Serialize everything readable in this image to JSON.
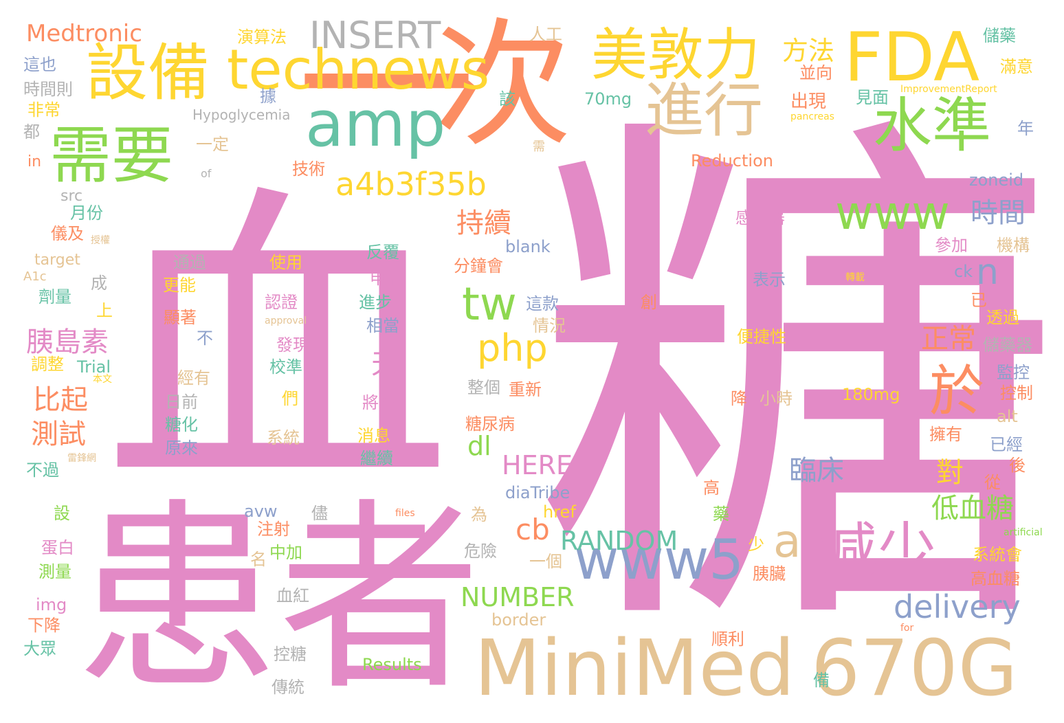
{
  "colors": {
    "background": "#ffffff",
    "pink": "#e38ac6",
    "orange": "#fc8d62",
    "yellow": "#fed631",
    "green": "#8ed850",
    "teal": "#66c2a5",
    "blue": "#8da0cb",
    "tan": "#e5c494",
    "gray": "#b3b3b3"
  },
  "words": [
    {
      "text": "血",
      "color": "pink"
    },
    {
      "text": "糖",
      "color": "pink"
    },
    {
      "text": "患者",
      "color": "pink"
    },
    {
      "text": "次",
      "color": "orange"
    },
    {
      "text": "一",
      "color": "orange"
    },
    {
      "text": "MiniMed",
      "color": "tan"
    },
    {
      "text": "670G",
      "color": "tan"
    },
    {
      "text": "FDA",
      "color": "yellow"
    },
    {
      "text": "需要",
      "color": "green"
    },
    {
      "text": "設備",
      "color": "yellow"
    },
    {
      "text": "amp",
      "color": "teal"
    },
    {
      "text": "美敦力",
      "color": "yellow"
    },
    {
      "text": "technews",
      "color": "yellow"
    },
    {
      "text": "水準",
      "color": "green"
    },
    {
      "text": "進行",
      "color": "tan"
    },
    {
      "text": "INSERT",
      "color": "gray"
    },
    {
      "text": "Medtronic",
      "color": "orange"
    },
    {
      "text": "a4b3f35b",
      "color": "yellow"
    },
    {
      "text": "www5",
      "color": "blue"
    },
    {
      "text": "減少",
      "color": "pink"
    },
    {
      "text": "於",
      "color": "orange"
    },
    {
      "text": "www",
      "color": "green"
    },
    {
      "text": "tw",
      "color": "green"
    },
    {
      "text": "php",
      "color": "yellow"
    },
    {
      "text": "a",
      "color": "tan"
    },
    {
      "text": "delivery",
      "color": "blue"
    },
    {
      "text": "cb",
      "color": "orange"
    },
    {
      "text": "RANDOM",
      "color": "teal"
    },
    {
      "text": "NUMBER",
      "color": "green"
    },
    {
      "text": "n",
      "color": "blue"
    },
    {
      "text": "方法",
      "color": "yellow"
    },
    {
      "text": "持續",
      "color": "orange"
    },
    {
      "text": "時間",
      "color": "blue"
    },
    {
      "text": "正常",
      "color": "orange"
    },
    {
      "text": "胰島素",
      "color": "pink"
    },
    {
      "text": "比起",
      "color": "orange"
    },
    {
      "text": "測試",
      "color": "orange"
    },
    {
      "text": "天",
      "color": "pink"
    },
    {
      "text": "dl",
      "color": "green"
    },
    {
      "text": "HERE",
      "color": "pink"
    },
    {
      "text": "臨床",
      "color": "blue"
    },
    {
      "text": "對",
      "color": "yellow"
    },
    {
      "text": "低血糖",
      "color": "green"
    },
    {
      "text": "通過",
      "color": "gray"
    },
    {
      "text": "使用",
      "color": "yellow"
    },
    {
      "text": "反覆",
      "color": "teal"
    },
    {
      "text": "申請",
      "color": "pink"
    },
    {
      "text": "認證",
      "color": "pink"
    },
    {
      "text": "進步",
      "color": "teal"
    },
    {
      "text": "相當",
      "color": "blue"
    },
    {
      "text": "發現",
      "color": "pink"
    },
    {
      "text": "校準",
      "color": "teal"
    },
    {
      "text": "將在",
      "color": "pink"
    },
    {
      "text": "們",
      "color": "yellow"
    },
    {
      "text": "系統",
      "color": "tan"
    },
    {
      "text": "消息",
      "color": "yellow"
    },
    {
      "text": "繼續",
      "color": "teal"
    },
    {
      "text": "更能",
      "color": "yellow"
    },
    {
      "text": "顯著",
      "color": "orange"
    },
    {
      "text": "不",
      "color": "blue"
    },
    {
      "text": "經有",
      "color": "tan"
    },
    {
      "text": "日前",
      "color": "gray"
    },
    {
      "text": "糖化",
      "color": "teal"
    },
    {
      "text": "原來",
      "color": "blue"
    },
    {
      "text": "approval",
      "color": "tan"
    },
    {
      "text": "演算法",
      "color": "yellow"
    },
    {
      "text": "人工",
      "color": "tan"
    },
    {
      "text": "70mg",
      "color": "teal"
    },
    {
      "text": "Hypoglycemia",
      "color": "gray"
    },
    {
      "text": "該",
      "color": "teal"
    },
    {
      "text": "據",
      "color": "blue"
    },
    {
      "text": "出現",
      "color": "orange"
    },
    {
      "text": "並向",
      "color": "orange"
    },
    {
      "text": "見面",
      "color": "teal"
    },
    {
      "text": "儲藥",
      "color": "teal"
    },
    {
      "text": "滿意",
      "color": "yellow"
    },
    {
      "text": "ImprovementReport",
      "color": "yellow"
    },
    {
      "text": "pancreas",
      "color": "yellow"
    },
    {
      "text": "年",
      "color": "blue"
    },
    {
      "text": "Reduction",
      "color": "orange"
    },
    {
      "text": "一定",
      "color": "tan"
    },
    {
      "text": "技術",
      "color": "orange"
    },
    {
      "text": "of",
      "color": "gray"
    },
    {
      "text": "需",
      "color": "tan"
    },
    {
      "text": "zoneid",
      "color": "blue"
    },
    {
      "text": "感測器",
      "color": "pink"
    },
    {
      "text": "機構",
      "color": "tan"
    },
    {
      "text": "參加",
      "color": "pink"
    },
    {
      "text": "blank",
      "color": "blue"
    },
    {
      "text": "分鐘會",
      "color": "orange"
    },
    {
      "text": "表示",
      "color": "blue"
    },
    {
      "text": "轉載",
      "color": "yellow"
    },
    {
      "text": "ck",
      "color": "blue"
    },
    {
      "text": "已",
      "color": "orange"
    },
    {
      "text": "透過",
      "color": "yellow"
    },
    {
      "text": "這款",
      "color": "blue"
    },
    {
      "text": "情況",
      "color": "tan"
    },
    {
      "text": "創",
      "color": "orange"
    },
    {
      "text": "便捷性",
      "color": "yellow"
    },
    {
      "text": "儲藥器",
      "color": "gray"
    },
    {
      "text": "監控",
      "color": "blue"
    },
    {
      "text": "控制",
      "color": "orange"
    },
    {
      "text": "整個",
      "color": "gray"
    },
    {
      "text": "重新",
      "color": "orange"
    },
    {
      "text": "降",
      "color": "orange"
    },
    {
      "text": "小時",
      "color": "tan"
    },
    {
      "text": "180mg",
      "color": "yellow"
    },
    {
      "text": "alt",
      "color": "tan"
    },
    {
      "text": "糖尿病",
      "color": "orange"
    },
    {
      "text": "擁有",
      "color": "orange"
    },
    {
      "text": "已經",
      "color": "blue"
    },
    {
      "text": "後",
      "color": "orange"
    },
    {
      "text": "從",
      "color": "orange"
    },
    {
      "text": "高",
      "color": "orange"
    },
    {
      "text": "diaTribe",
      "color": "blue"
    },
    {
      "text": "href",
      "color": "yellow"
    },
    {
      "text": "藥",
      "color": "green"
    },
    {
      "text": "artificial",
      "color": "green"
    },
    {
      "text": "系統會",
      "color": "yellow"
    },
    {
      "text": "高血糖",
      "color": "orange"
    },
    {
      "text": "少",
      "color": "yellow"
    },
    {
      "text": "胰臟",
      "color": "orange"
    },
    {
      "text": "一個",
      "color": "tan"
    },
    {
      "text": "危險",
      "color": "gray"
    },
    {
      "text": "為",
      "color": "tan"
    },
    {
      "text": "files",
      "color": "orange"
    },
    {
      "text": "儘",
      "color": "gray"
    },
    {
      "text": "avw",
      "color": "blue"
    },
    {
      "text": "注射",
      "color": "orange"
    },
    {
      "text": "中加",
      "color": "green"
    },
    {
      "text": "名",
      "color": "tan"
    },
    {
      "text": "血紅",
      "color": "gray"
    },
    {
      "text": "border",
      "color": "tan"
    },
    {
      "text": "順利",
      "color": "orange"
    },
    {
      "text": "for",
      "color": "orange"
    },
    {
      "text": "控糖",
      "color": "gray"
    },
    {
      "text": "Results",
      "color": "green"
    },
    {
      "text": "傳統",
      "color": "gray"
    },
    {
      "text": "備",
      "color": "teal"
    },
    {
      "text": "這也",
      "color": "blue"
    },
    {
      "text": "時間則",
      "color": "gray"
    },
    {
      "text": "非常",
      "color": "yellow"
    },
    {
      "text": "都",
      "color": "gray"
    },
    {
      "text": "in",
      "color": "orange"
    },
    {
      "text": "src",
      "color": "gray"
    },
    {
      "text": "月份",
      "color": "teal"
    },
    {
      "text": "儀及",
      "color": "orange"
    },
    {
      "text": "授權",
      "color": "tan"
    },
    {
      "text": "target",
      "color": "tan"
    },
    {
      "text": "A1c",
      "color": "tan"
    },
    {
      "text": "成",
      "color": "gray"
    },
    {
      "text": "劑量",
      "color": "teal"
    },
    {
      "text": "上",
      "color": "yellow"
    },
    {
      "text": "Trial",
      "color": "teal"
    },
    {
      "text": "調整",
      "color": "yellow"
    },
    {
      "text": "本文",
      "color": "yellow"
    },
    {
      "text": "不過",
      "color": "teal"
    },
    {
      "text": "雷鋒網",
      "color": "tan"
    },
    {
      "text": "設",
      "color": "green"
    },
    {
      "text": "蛋白",
      "color": "pink"
    },
    {
      "text": "測量",
      "color": "green"
    },
    {
      "text": "img",
      "color": "pink"
    },
    {
      "text": "下降",
      "color": "orange"
    },
    {
      "text": "大眾",
      "color": "teal"
    }
  ]
}
